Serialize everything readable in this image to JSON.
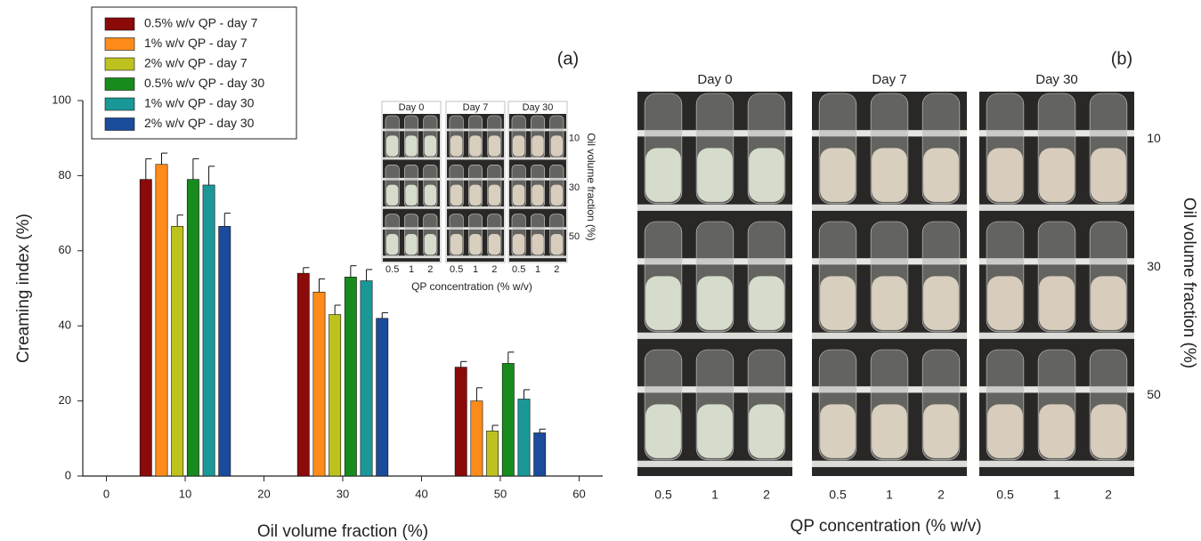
{
  "chart_data": {
    "type": "bar",
    "panel_label": "(a)",
    "ylabel": "Creaming index (%)",
    "xlabel": "Oil volume fraction (%)",
    "xlim": [
      -3,
      63
    ],
    "xticks": [
      0,
      10,
      20,
      30,
      40,
      50,
      60
    ],
    "ylim": [
      0,
      100
    ],
    "yticks": [
      0,
      20,
      40,
      60,
      80,
      100
    ],
    "legend": "upper left",
    "series": [
      {
        "name": "0.5% w/v QP - day 7",
        "color": "#8b0a0a",
        "x": [
          5,
          25,
          45
        ],
        "values": [
          79,
          54,
          29
        ],
        "errors": [
          5.5,
          1.5,
          1.5
        ]
      },
      {
        "name": "1% w/v QP - day 7",
        "color": "#ff8c1a",
        "x": [
          7,
          27,
          47
        ],
        "values": [
          83,
          49,
          20
        ],
        "errors": [
          3,
          3.5,
          3.5
        ]
      },
      {
        "name": "2% w/v QP - day 7",
        "color": "#bec21e",
        "x": [
          9,
          29,
          49
        ],
        "values": [
          66.5,
          43,
          12
        ],
        "errors": [
          3,
          2.5,
          1.5
        ]
      },
      {
        "name": "0.5% w/v QP - day 30",
        "color": "#178c1c",
        "x": [
          11,
          31,
          51
        ],
        "values": [
          79,
          53,
          30
        ],
        "errors": [
          5.5,
          3,
          3
        ]
      },
      {
        "name": "1% w/v QP - day 30",
        "color": "#1a9898",
        "x": [
          13,
          33,
          53
        ],
        "values": [
          77.5,
          52,
          20.5
        ],
        "errors": [
          5,
          3,
          2.5
        ]
      },
      {
        "name": "2% w/v QP - day 30",
        "color": "#1b4b9b",
        "x": [
          15,
          35,
          55
        ],
        "values": [
          66.5,
          42,
          11.5
        ],
        "errors": [
          3.5,
          1.5,
          1
        ]
      }
    ]
  },
  "inset": {
    "columns": [
      "Day 0",
      "Day 7",
      "Day 30"
    ],
    "x_labels": [
      "0.5",
      "1",
      "2"
    ],
    "row_labels": [
      "10",
      "30",
      "50"
    ],
    "y_title": "Oil volume fraction (%)",
    "x_title": "QP concentration (% w/v)"
  },
  "panel_b": {
    "panel_label": "(b)",
    "columns": [
      "Day 0",
      "Day 7",
      "Day 30"
    ],
    "x_labels": [
      "0.5",
      "1",
      "2"
    ],
    "row_labels": [
      "10",
      "30",
      "50"
    ],
    "y_title": "Oil volume fraction (%)",
    "x_title": "QP concentration (% w/v)"
  }
}
